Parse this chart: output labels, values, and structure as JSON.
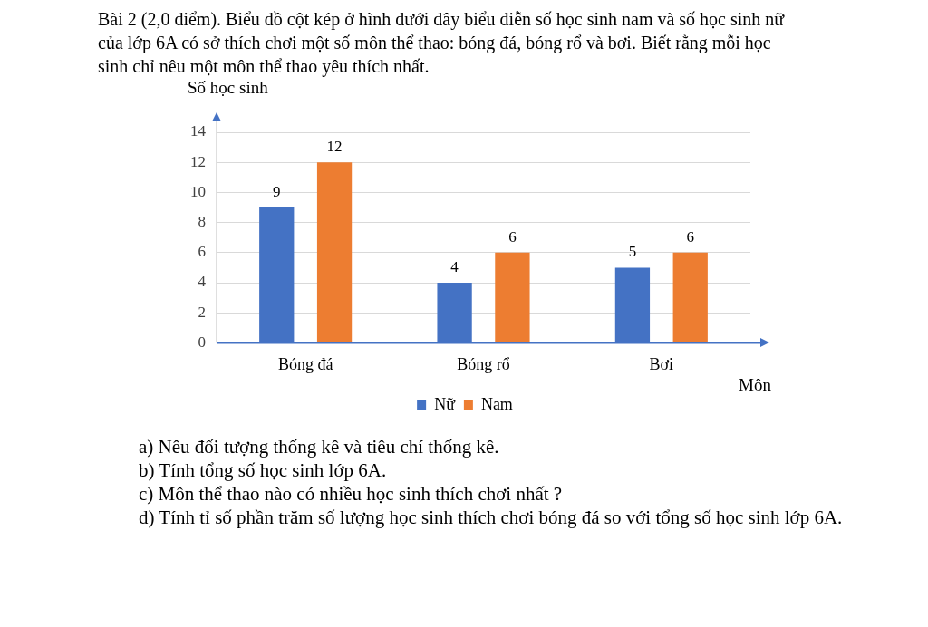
{
  "chart_data": {
    "type": "bar",
    "title": "Bài 2 (2,0 điểm). Biểu đồ cột kép ở hình dưới đây biểu diễn số học sinh nam và số học sinh nữ của lớp 6A có sở thích chơi một số môn thể thao: bóng đá, bóng rổ và bơi. Biết rằng mỗi học sinh chỉ nêu một môn thể thao yêu thích nhất.",
    "ylabel": "Số học sinh",
    "xlabel": "Môn",
    "categories": [
      "Bóng đá",
      "Bóng rổ",
      "Bơi"
    ],
    "series": [
      {
        "name": "Nữ",
        "color": "#4472c4",
        "values": [
          9,
          4,
          5
        ]
      },
      {
        "name": "Nam",
        "color": "#ed7d31",
        "values": [
          12,
          6,
          6
        ]
      }
    ],
    "ylim": [
      0,
      14
    ],
    "yticks": [
      0,
      2,
      4,
      6,
      8,
      10,
      12,
      14
    ],
    "grid": "y",
    "legend": "bottom",
    "data_labels": true,
    "annotations": [
      "a) Nêu đối tượng thống kê và tiêu chí thống kê.",
      "b) Tính tổng số học sinh lớp 6A.",
      "c) Môn thể thao nào có nhiều học sinh thích chơi nhất ?",
      "d) Tính tỉ số phần trăm số lượng học sinh thích chơi bóng đá so với tổng số học sinh lớp 6A."
    ]
  }
}
